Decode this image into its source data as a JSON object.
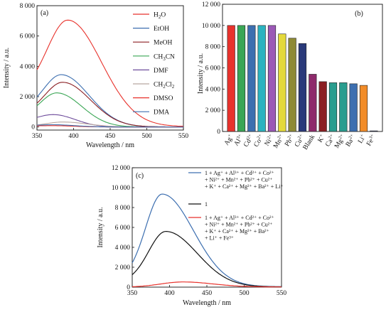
{
  "chart_data": [
    {
      "panel_label": "(a)",
      "type": "line",
      "xlabel": "Wavelength / nm",
      "ylabel": "Intensity / a.u.",
      "xlim": [
        350,
        550
      ],
      "ylim": [
        -200,
        8000
      ],
      "xticks": [
        "350",
        "400",
        "450",
        "500",
        "550"
      ],
      "yticks": [
        "0",
        "2 000",
        "4 000",
        "6 000",
        "8 000"
      ],
      "legend_position": "top-right",
      "series": [
        {
          "name": "H2O",
          "name_base": "H",
          "name_sub": "2",
          "name_tail": "O",
          "color": "#e8322c",
          "peak_x": 392,
          "peak_y": 7050,
          "start_y": 2200,
          "end_y": 30,
          "sigma_l": 28,
          "sigma_r": 46
        },
        {
          "name": "EtOH",
          "color": "#3d6fb0",
          "peak_x": 383,
          "peak_y": 3450,
          "start_y": 1050,
          "end_y": 10,
          "sigma_l": 24,
          "sigma_r": 38
        },
        {
          "name": "MeOH",
          "color": "#8b1f23",
          "peak_x": 385,
          "peak_y": 2950,
          "start_y": 850,
          "end_y": 10,
          "sigma_l": 24,
          "sigma_r": 38
        },
        {
          "name": "CH3CN",
          "name_base": "CH",
          "name_sub": "3",
          "name_tail": "CN",
          "color": "#3aa655",
          "peak_x": 377,
          "peak_y": 2250,
          "start_y": 650,
          "end_y": 5,
          "sigma_l": 22,
          "sigma_r": 34
        },
        {
          "name": "DMF",
          "color": "#6f4d9c",
          "peak_x": 372,
          "peak_y": 820,
          "start_y": 420,
          "end_y": 0,
          "sigma_l": 20,
          "sigma_r": 30
        },
        {
          "name": "CH2Cl2",
          "name_base": "CH",
          "name_sub": "2",
          "name_tail": "Cl",
          "name_sub2": "2",
          "color": "#b8a7a0",
          "peak_x": 385,
          "peak_y": 330,
          "start_y": 60,
          "end_y": 0,
          "sigma_l": 22,
          "sigma_r": 34
        },
        {
          "name": "DMSO",
          "color": "#e8322c",
          "peak_x": 370,
          "peak_y": 90,
          "start_y": 50,
          "end_y": 0,
          "sigma_l": 20,
          "sigma_r": 30
        },
        {
          "name": "DMA",
          "color": "#3d6fb0",
          "peak_x": 372,
          "peak_y": 150,
          "start_y": 80,
          "end_y": 0,
          "sigma_l": 20,
          "sigma_r": 30
        }
      ]
    },
    {
      "panel_label": "(b)",
      "type": "bar",
      "ylabel": "Intensity / a.u.",
      "ylim": [
        0,
        12000
      ],
      "yticks": [
        "0",
        "2 000",
        "4 000",
        "6 000",
        "8 000",
        "10 000",
        "12 000"
      ],
      "categories": [
        {
          "base": "Ag",
          "sup": "+"
        },
        {
          "base": "Al",
          "sup": "3+"
        },
        {
          "base": "Cd",
          "sup": "2+"
        },
        {
          "base": "Co",
          "sup": "2+"
        },
        {
          "base": "Ni",
          "sup": "2+"
        },
        {
          "base": "Mn",
          "sup": "2+"
        },
        {
          "base": "Pb",
          "sup": "2+"
        },
        {
          "base": "Cu",
          "sup": "2+"
        },
        {
          "base": "Blank",
          "sup": ""
        },
        {
          "base": "K",
          "sup": "+"
        },
        {
          "base": "Ca",
          "sup": "2+"
        },
        {
          "base": "Mg",
          "sup": "2+"
        },
        {
          "base": "Ba",
          "sup": "2+"
        },
        {
          "base": "Li",
          "sup": "+"
        },
        {
          "base": "Fe",
          "sup": "3+"
        }
      ],
      "values": [
        10000,
        10000,
        10000,
        10000,
        10000,
        9200,
        8800,
        8300,
        5400,
        4700,
        4600,
        4600,
        4500,
        4350,
        60
      ],
      "colors": [
        "#e8322c",
        "#3aa655",
        "#3d6fb0",
        "#2bb3c0",
        "#9b59b6",
        "#e4d93b",
        "#8e8a35",
        "#2a3a7a",
        "#8e2a6b",
        "#8b1f23",
        "#2a9d8f",
        "#2a9d8f",
        "#3d6fb0",
        "#f28c28",
        "#2a3a7a"
      ]
    },
    {
      "panel_label": "(c)",
      "type": "line",
      "xlabel": "Wavelength / nm",
      "ylabel": "Intensity / a.u.",
      "xlim": [
        350,
        550
      ],
      "ylim": [
        0,
        12000
      ],
      "xticks": [
        "350",
        "400",
        "450",
        "500",
        "550"
      ],
      "yticks": [
        "0",
        "2 000",
        "4 000",
        "6 000",
        "8 000",
        "10 000",
        "12 000"
      ],
      "legend_position": "top-right",
      "series": [
        {
          "color": "#3d6fb0",
          "legend_lines": [
            "1 + Ag⁺ + Al³⁺ + Cd²⁺ + Co²⁺",
            "+ Ni²⁺ + Mn²⁺ + Pb²⁺ + Cu²⁺",
            "+ K⁺ + Ca²⁺ + Mg²⁺ + Ba²⁺ + Li⁺"
          ],
          "peak_x": 390,
          "peak_y": 9350,
          "start_y": 800,
          "end_y": 40,
          "sigma_l": 22,
          "sigma_r": 42
        },
        {
          "color": "#111111",
          "legend_lines": [
            "1"
          ],
          "peak_x": 395,
          "peak_y": 5600,
          "start_y": 500,
          "end_y": 25,
          "sigma_l": 23,
          "sigma_r": 42
        },
        {
          "color": "#e8322c",
          "legend_lines": [
            "1 + Ag⁺ + Al³⁺ + Cd²⁺ + Co²⁺",
            "+ Ni²⁺ + Mn²⁺ + Pb²⁺ + Cu²⁺",
            "+ K⁺ + Ca²⁺ + Mg²⁺ + Ba²⁺",
            "+ Li⁺ + Fe³⁺"
          ],
          "peak_x": 418,
          "peak_y": 520,
          "start_y": 0,
          "end_y": 20,
          "sigma_l": 30,
          "sigma_r": 40
        }
      ]
    }
  ]
}
